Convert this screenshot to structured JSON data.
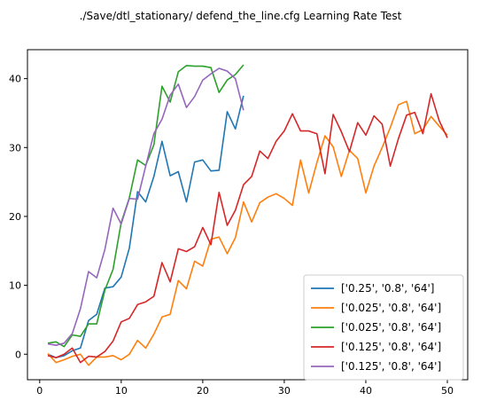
{
  "chart_data": {
    "type": "line",
    "title": "./Save/dtl_stationary/ defend_the_line.cfg Learning Rate Test",
    "xlabel": "",
    "ylabel": "",
    "xlim": [
      -1.5,
      52.5
    ],
    "ylim": [
      -3.7,
      44.2
    ],
    "xticks": [
      0,
      10,
      20,
      30,
      40,
      50
    ],
    "yticks": [
      0,
      10,
      20,
      30,
      40
    ],
    "grid": false,
    "legend_position": "lower-right",
    "series": [
      {
        "name": "['0.25', '0.8', '64']",
        "color": "#1f77b4",
        "x": [
          1,
          2,
          3,
          4,
          5,
          6,
          7,
          8,
          9,
          10,
          11,
          12,
          13,
          14,
          15,
          16,
          17,
          18,
          19,
          20,
          21,
          22,
          23,
          24,
          25
        ],
        "y": [
          0,
          -0.5,
          -0.2,
          0.5,
          0.9,
          4.9,
          5.8,
          9.6,
          9.8,
          11.2,
          15.4,
          23.6,
          22.1,
          25.8,
          30.9,
          25.9,
          26.5,
          22.1,
          27.9,
          28.2,
          26.6,
          26.7,
          35.2,
          32.7,
          37.5
        ]
      },
      {
        "name": "['0.025', '0.8', '64']",
        "color": "#ff7f0e",
        "x": [
          1,
          2,
          3,
          4,
          5,
          6,
          7,
          8,
          9,
          10,
          11,
          12,
          13,
          14,
          15,
          16,
          17,
          18,
          19,
          20,
          21,
          22,
          23,
          24,
          25,
          26,
          27,
          28,
          29,
          30,
          31,
          32,
          33,
          34,
          35,
          36,
          37,
          38,
          39,
          40,
          41,
          42,
          43,
          44,
          45,
          46,
          47,
          48,
          49,
          50
        ],
        "y": [
          0.1,
          -1.2,
          -0.8,
          -0.3,
          0,
          -1.6,
          -0.4,
          -0.4,
          -0.2,
          -0.8,
          0,
          2,
          0.9,
          2.9,
          5.4,
          5.8,
          10.7,
          9.5,
          13.5,
          12.8,
          16.7,
          17,
          14.6,
          16.9,
          22.1,
          19.2,
          22,
          22.8,
          23.3,
          22.6,
          21.6,
          28.2,
          23.4,
          27.8,
          31.7,
          30.1,
          25.8,
          29.6,
          28.4,
          23.4,
          27.3,
          30,
          32.9,
          36.2,
          36.7,
          32,
          32.6,
          34.5,
          33.1,
          31.8
        ]
      },
      {
        "name": "['0.025', '0.8', '64']",
        "color": "#2ca02c",
        "x": [
          1,
          2,
          3,
          4,
          5,
          6,
          7,
          8,
          9,
          10,
          11,
          12,
          13,
          14,
          15,
          16,
          17,
          18,
          19,
          20,
          21,
          22,
          23,
          24,
          25
        ],
        "y": [
          1.6,
          1.8,
          1.1,
          2.8,
          2.6,
          4.4,
          4.4,
          9.3,
          12.3,
          19.1,
          22.7,
          28.2,
          27.4,
          30.4,
          38.9,
          36.6,
          41,
          41.9,
          41.8,
          41.8,
          41.6,
          38,
          39.8,
          40.6,
          42
        ]
      },
      {
        "name": "['0.125', '0.8', '64']",
        "color": "#d62728",
        "x": [
          1,
          2,
          3,
          4,
          5,
          6,
          7,
          8,
          9,
          10,
          11,
          12,
          13,
          14,
          15,
          16,
          17,
          18,
          19,
          20,
          21,
          22,
          23,
          24,
          25,
          26,
          27,
          28,
          29,
          30,
          31,
          32,
          33,
          34,
          35,
          36,
          37,
          38,
          39,
          40,
          41,
          42,
          43,
          44,
          45,
          46,
          47,
          48,
          49,
          50
        ],
        "y": [
          -0.2,
          -0.5,
          0,
          0.9,
          -1.2,
          -0.3,
          -0.4,
          0.4,
          1.9,
          4.7,
          5.2,
          7.2,
          7.6,
          8.4,
          13.3,
          10.5,
          15.3,
          14.9,
          15.6,
          18.4,
          15.9,
          23.5,
          18.7,
          20.9,
          24.6,
          25.8,
          29.5,
          28.4,
          30.9,
          32.4,
          34.9,
          32.4,
          32.4,
          32,
          26.2,
          34.8,
          32.3,
          29.4,
          33.6,
          31.8,
          34.6,
          33.4,
          27.3,
          31.3,
          34.7,
          35.1,
          32,
          37.8,
          33.9,
          31.4
        ]
      },
      {
        "name": "['0.125', '0.8', '64']",
        "color": "#9467bd",
        "x": [
          1,
          2,
          3,
          4,
          5,
          6,
          7,
          8,
          9,
          10,
          11,
          12,
          13,
          14,
          15,
          16,
          17,
          18,
          19,
          20,
          21,
          22,
          23,
          24,
          25
        ],
        "y": [
          1.5,
          1.3,
          1.6,
          3,
          6.6,
          12,
          11.1,
          15.2,
          21.2,
          18.9,
          22.6,
          22.5,
          27.3,
          32,
          34.1,
          37.6,
          39.2,
          35.8,
          37.4,
          39.8,
          40.7,
          41.5,
          41.1,
          40,
          35.4
        ]
      }
    ]
  }
}
